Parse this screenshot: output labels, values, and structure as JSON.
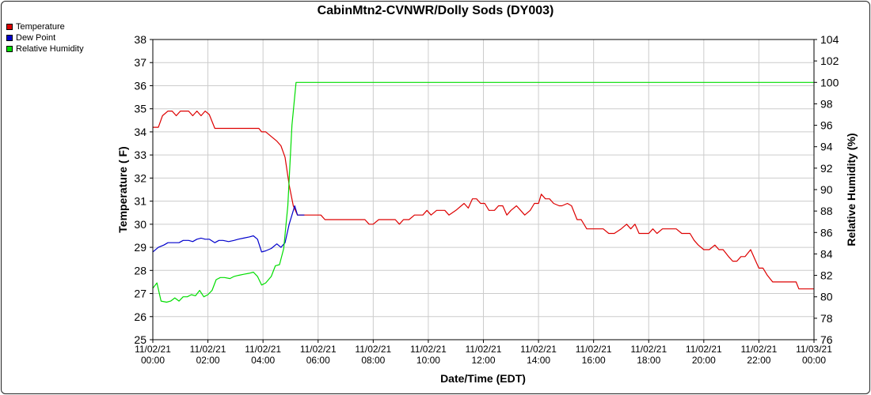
{
  "chart_data": {
    "type": "line",
    "title": "CabinMtn2-CVNWR/Dolly Sods (DY003)",
    "xlabel": "Date/Time (EDT)",
    "ylabel": "Temperature ( F)",
    "y2label": "Relative Humidity (%)",
    "xlim": [
      0,
      24
    ],
    "ylim": [
      25,
      38
    ],
    "y2lim": [
      76,
      104
    ],
    "grid": true,
    "legend_position": "top-left",
    "x_ticks": [
      {
        "x": 0,
        "date": "11/02/21",
        "time": "00:00"
      },
      {
        "x": 2,
        "date": "11/02/21",
        "time": "02:00"
      },
      {
        "x": 4,
        "date": "11/02/21",
        "time": "04:00"
      },
      {
        "x": 6,
        "date": "11/02/21",
        "time": "06:00"
      },
      {
        "x": 8,
        "date": "11/02/21",
        "time": "08:00"
      },
      {
        "x": 10,
        "date": "11/02/21",
        "time": "10:00"
      },
      {
        "x": 12,
        "date": "11/02/21",
        "time": "12:00"
      },
      {
        "x": 14,
        "date": "11/02/21",
        "time": "14:00"
      },
      {
        "x": 16,
        "date": "11/02/21",
        "time": "16:00"
      },
      {
        "x": 18,
        "date": "11/02/21",
        "time": "18:00"
      },
      {
        "x": 20,
        "date": "11/02/21",
        "time": "20:00"
      },
      {
        "x": 22,
        "date": "11/02/21",
        "time": "22:00"
      },
      {
        "x": 24,
        "date": "11/03/21",
        "time": "00:00"
      }
    ],
    "y_ticks": [
      25,
      26,
      27,
      28,
      29,
      30,
      31,
      32,
      33,
      34,
      35,
      36,
      37,
      38
    ],
    "y2_ticks": [
      76,
      78,
      80,
      82,
      84,
      86,
      88,
      90,
      92,
      94,
      96,
      98,
      100,
      102,
      104
    ],
    "series": [
      {
        "name": "Temperature",
        "color": "#dd0000",
        "axis": "left",
        "points": [
          [
            0,
            34.2
          ],
          [
            0.2,
            34.2
          ],
          [
            0.35,
            34.7
          ],
          [
            0.55,
            34.9
          ],
          [
            0.7,
            34.9
          ],
          [
            0.85,
            34.7
          ],
          [
            1.0,
            34.9
          ],
          [
            1.15,
            34.9
          ],
          [
            1.3,
            34.9
          ],
          [
            1.45,
            34.7
          ],
          [
            1.6,
            34.9
          ],
          [
            1.75,
            34.7
          ],
          [
            1.9,
            34.9
          ],
          [
            2.05,
            34.75
          ],
          [
            2.25,
            34.15
          ],
          [
            2.5,
            34.15
          ],
          [
            3.0,
            34.15
          ],
          [
            3.5,
            34.15
          ],
          [
            3.85,
            34.15
          ],
          [
            3.95,
            34.0
          ],
          [
            4.1,
            34.0
          ],
          [
            4.3,
            33.8
          ],
          [
            4.5,
            33.6
          ],
          [
            4.65,
            33.4
          ],
          [
            4.8,
            32.9
          ],
          [
            4.95,
            31.7
          ],
          [
            5.1,
            30.8
          ],
          [
            5.25,
            30.4
          ],
          [
            5.5,
            30.4
          ],
          [
            5.8,
            30.4
          ],
          [
            6.1,
            30.4
          ],
          [
            6.25,
            30.2
          ],
          [
            6.6,
            30.2
          ],
          [
            7.0,
            30.2
          ],
          [
            7.4,
            30.2
          ],
          [
            7.7,
            30.2
          ],
          [
            7.85,
            30.0
          ],
          [
            8.0,
            30.0
          ],
          [
            8.2,
            30.2
          ],
          [
            8.5,
            30.2
          ],
          [
            8.8,
            30.2
          ],
          [
            8.95,
            30.0
          ],
          [
            9.1,
            30.2
          ],
          [
            9.3,
            30.2
          ],
          [
            9.5,
            30.4
          ],
          [
            9.8,
            30.4
          ],
          [
            9.95,
            30.6
          ],
          [
            10.1,
            30.4
          ],
          [
            10.3,
            30.6
          ],
          [
            10.6,
            30.6
          ],
          [
            10.75,
            30.4
          ],
          [
            11.0,
            30.6
          ],
          [
            11.3,
            30.9
          ],
          [
            11.45,
            30.7
          ],
          [
            11.6,
            31.1
          ],
          [
            11.75,
            31.1
          ],
          [
            11.9,
            30.9
          ],
          [
            12.05,
            30.9
          ],
          [
            12.2,
            30.6
          ],
          [
            12.4,
            30.6
          ],
          [
            12.55,
            30.8
          ],
          [
            12.7,
            30.8
          ],
          [
            12.85,
            30.4
          ],
          [
            13.0,
            30.6
          ],
          [
            13.2,
            30.8
          ],
          [
            13.35,
            30.6
          ],
          [
            13.5,
            30.4
          ],
          [
            13.7,
            30.6
          ],
          [
            13.85,
            30.9
          ],
          [
            14.0,
            30.9
          ],
          [
            14.1,
            31.3
          ],
          [
            14.25,
            31.1
          ],
          [
            14.4,
            31.1
          ],
          [
            14.55,
            30.9
          ],
          [
            14.75,
            30.8
          ],
          [
            14.85,
            30.8
          ],
          [
            15.05,
            30.9
          ],
          [
            15.2,
            30.8
          ],
          [
            15.4,
            30.2
          ],
          [
            15.55,
            30.2
          ],
          [
            15.75,
            29.8
          ],
          [
            16.0,
            29.8
          ],
          [
            16.35,
            29.8
          ],
          [
            16.55,
            29.6
          ],
          [
            16.75,
            29.6
          ],
          [
            17.0,
            29.8
          ],
          [
            17.2,
            30.0
          ],
          [
            17.35,
            29.8
          ],
          [
            17.5,
            30.0
          ],
          [
            17.65,
            29.6
          ],
          [
            17.85,
            29.6
          ],
          [
            18.0,
            29.6
          ],
          [
            18.15,
            29.8
          ],
          [
            18.3,
            29.6
          ],
          [
            18.5,
            29.8
          ],
          [
            18.7,
            29.8
          ],
          [
            18.85,
            29.8
          ],
          [
            19.0,
            29.8
          ],
          [
            19.2,
            29.6
          ],
          [
            19.4,
            29.6
          ],
          [
            19.5,
            29.6
          ],
          [
            19.65,
            29.3
          ],
          [
            19.8,
            29.1
          ],
          [
            20.0,
            28.9
          ],
          [
            20.2,
            28.9
          ],
          [
            20.4,
            29.1
          ],
          [
            20.55,
            28.9
          ],
          [
            20.7,
            28.9
          ],
          [
            20.9,
            28.6
          ],
          [
            21.05,
            28.4
          ],
          [
            21.2,
            28.4
          ],
          [
            21.35,
            28.6
          ],
          [
            21.5,
            28.6
          ],
          [
            21.7,
            28.9
          ],
          [
            21.85,
            28.5
          ],
          [
            22.0,
            28.1
          ],
          [
            22.15,
            28.1
          ],
          [
            22.3,
            27.8
          ],
          [
            22.5,
            27.5
          ],
          [
            22.7,
            27.5
          ],
          [
            22.9,
            27.5
          ],
          [
            23.1,
            27.5
          ],
          [
            23.35,
            27.5
          ],
          [
            23.45,
            27.2
          ],
          [
            23.7,
            27.2
          ],
          [
            24.0,
            27.2
          ]
        ]
      },
      {
        "name": "Dew Point",
        "color": "#0000cc",
        "axis": "left",
        "points": [
          [
            0,
            28.8
          ],
          [
            0.2,
            29.0
          ],
          [
            0.4,
            29.1
          ],
          [
            0.55,
            29.2
          ],
          [
            0.75,
            29.2
          ],
          [
            0.95,
            29.2
          ],
          [
            1.1,
            29.3
          ],
          [
            1.3,
            29.3
          ],
          [
            1.45,
            29.25
          ],
          [
            1.6,
            29.35
          ],
          [
            1.75,
            29.4
          ],
          [
            1.9,
            29.35
          ],
          [
            2.05,
            29.35
          ],
          [
            2.25,
            29.2
          ],
          [
            2.4,
            29.3
          ],
          [
            2.55,
            29.3
          ],
          [
            2.75,
            29.25
          ],
          [
            2.95,
            29.3
          ],
          [
            3.1,
            29.35
          ],
          [
            3.3,
            29.4
          ],
          [
            3.5,
            29.45
          ],
          [
            3.65,
            29.5
          ],
          [
            3.8,
            29.35
          ],
          [
            3.95,
            28.8
          ],
          [
            4.1,
            28.85
          ],
          [
            4.3,
            28.95
          ],
          [
            4.5,
            29.15
          ],
          [
            4.65,
            29.0
          ],
          [
            4.8,
            29.2
          ],
          [
            4.95,
            30.0
          ],
          [
            5.05,
            30.4
          ],
          [
            5.15,
            30.8
          ],
          [
            5.25,
            30.4
          ],
          [
            5.5,
            30.4
          ]
        ]
      },
      {
        "name": "Relative Humidity",
        "color": "#00dd00",
        "axis": "right",
        "points": [
          [
            0,
            80.8
          ],
          [
            0.15,
            81.3
          ],
          [
            0.3,
            79.6
          ],
          [
            0.5,
            79.5
          ],
          [
            0.65,
            79.6
          ],
          [
            0.8,
            79.9
          ],
          [
            0.95,
            79.6
          ],
          [
            1.1,
            80.0
          ],
          [
            1.25,
            80.0
          ],
          [
            1.4,
            80.2
          ],
          [
            1.55,
            80.1
          ],
          [
            1.7,
            80.6
          ],
          [
            1.85,
            80.0
          ],
          [
            2.0,
            80.2
          ],
          [
            2.15,
            80.6
          ],
          [
            2.3,
            81.6
          ],
          [
            2.45,
            81.8
          ],
          [
            2.6,
            81.8
          ],
          [
            2.8,
            81.7
          ],
          [
            2.95,
            81.9
          ],
          [
            3.1,
            82.0
          ],
          [
            3.3,
            82.1
          ],
          [
            3.5,
            82.2
          ],
          [
            3.65,
            82.3
          ],
          [
            3.8,
            81.9
          ],
          [
            3.95,
            81.1
          ],
          [
            4.1,
            81.3
          ],
          [
            4.3,
            81.9
          ],
          [
            4.45,
            82.9
          ],
          [
            4.6,
            83.0
          ],
          [
            4.75,
            84.5
          ],
          [
            4.9,
            88.5
          ],
          [
            5.05,
            96.0
          ],
          [
            5.2,
            100.0
          ],
          [
            6.0,
            100.0
          ],
          [
            10.0,
            100.0
          ],
          [
            14.0,
            100.0
          ],
          [
            18.0,
            100.0
          ],
          [
            22.0,
            100.0
          ],
          [
            24.0,
            100.0
          ]
        ]
      }
    ]
  }
}
